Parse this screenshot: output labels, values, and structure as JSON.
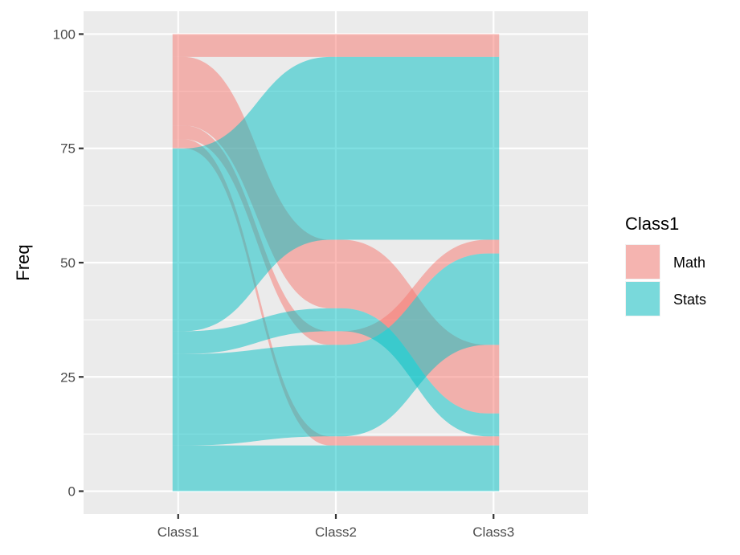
{
  "chart_data": {
    "type": "alluvial",
    "title": "",
    "xlabel": "",
    "ylabel": "Freq",
    "ylim": [
      -5,
      105
    ],
    "yticks": [
      0,
      25,
      50,
      75,
      100
    ],
    "ytick_labels": [
      "0",
      "25",
      "50",
      "75",
      "100"
    ],
    "axes": [
      "Class1",
      "Class2",
      "Class3"
    ],
    "fill_variable": "Class1",
    "legend": {
      "title": "Class1",
      "position": "right",
      "entries": [
        {
          "name": "Math",
          "color": "#F8766D"
        },
        {
          "name": "Stats",
          "color": "#00BFC4"
        }
      ]
    },
    "stratum_stack_order": {
      "Class1": [
        "Stats",
        "Math"
      ],
      "Class2": [
        "Math",
        "Stats",
        "Math",
        "Stats",
        "Math"
      ],
      "Class3": [
        "Stats",
        "Math",
        "Stats",
        "Math",
        "Stats",
        "Math"
      ]
    },
    "flows": [
      {
        "group": "Math",
        "freq": 5,
        "segments": [
          [
            95,
            100
          ],
          [
            95,
            100
          ],
          [
            95,
            100
          ]
        ]
      },
      {
        "group": "Math",
        "freq": 15,
        "segments": [
          [
            80,
            95
          ],
          [
            40,
            55
          ],
          [
            17,
            32
          ]
        ]
      },
      {
        "group": "Math",
        "freq": 3,
        "segments": [
          [
            77,
            80
          ],
          [
            32,
            35
          ],
          [
            52,
            55
          ]
        ]
      },
      {
        "group": "Math",
        "freq": 2,
        "segments": [
          [
            75,
            77
          ],
          [
            10,
            12
          ],
          [
            10,
            12
          ]
        ]
      },
      {
        "group": "Stats",
        "freq": 40,
        "segments": [
          [
            35,
            75
          ],
          [
            55,
            95
          ],
          [
            55,
            95
          ]
        ]
      },
      {
        "group": "Stats",
        "freq": 5,
        "segments": [
          [
            30,
            35
          ],
          [
            35,
            40
          ],
          [
            12,
            17
          ]
        ]
      },
      {
        "group": "Stats",
        "freq": 20,
        "segments": [
          [
            10,
            30
          ],
          [
            12,
            32
          ],
          [
            32,
            52
          ]
        ]
      },
      {
        "group": "Stats",
        "freq": 10,
        "segments": [
          [
            0,
            10
          ],
          [
            0,
            10
          ],
          [
            0,
            10
          ]
        ]
      }
    ]
  }
}
